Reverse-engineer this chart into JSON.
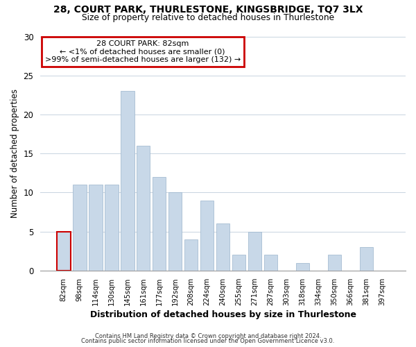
{
  "title1": "28, COURT PARK, THURLESTONE, KINGSBRIDGE, TQ7 3LX",
  "title2": "Size of property relative to detached houses in Thurlestone",
  "xlabel": "Distribution of detached houses by size in Thurlestone",
  "ylabel": "Number of detached properties",
  "bar_color": "#c8d8e8",
  "bar_edge_color": "#9ab4cc",
  "categories": [
    "82sqm",
    "98sqm",
    "114sqm",
    "130sqm",
    "145sqm",
    "161sqm",
    "177sqm",
    "192sqm",
    "208sqm",
    "224sqm",
    "240sqm",
    "255sqm",
    "271sqm",
    "287sqm",
    "303sqm",
    "318sqm",
    "334sqm",
    "350sqm",
    "366sqm",
    "381sqm",
    "397sqm"
  ],
  "values": [
    5,
    11,
    11,
    11,
    23,
    16,
    12,
    10,
    4,
    9,
    6,
    2,
    5,
    2,
    0,
    1,
    0,
    2,
    0,
    3,
    0
  ],
  "ylim": [
    0,
    30
  ],
  "yticks": [
    0,
    5,
    10,
    15,
    20,
    25,
    30
  ],
  "annotation_title": "28 COURT PARK: 82sqm",
  "annotation_line1": "← <1% of detached houses are smaller (0)",
  "annotation_line2": ">99% of semi-detached houses are larger (132) →",
  "annotation_box_color": "#ffffff",
  "annotation_box_edge": "#cc0000",
  "highlight_bar_index": 0,
  "highlight_bar_edge_color": "#cc0000",
  "footer1": "Contains HM Land Registry data © Crown copyright and database right 2024.",
  "footer2": "Contains public sector information licensed under the Open Government Licence v3.0."
}
